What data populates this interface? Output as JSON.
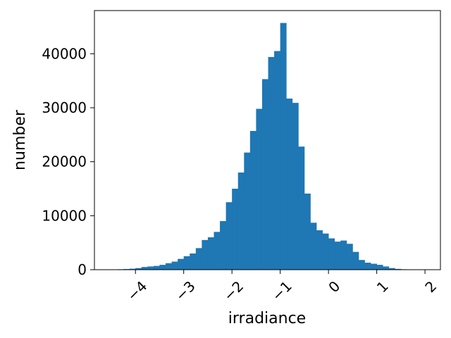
{
  "chart_data": {
    "type": "bar",
    "title": "",
    "xlabel": "irradiance",
    "ylabel": "number",
    "xlim": [
      -4.85,
      2.32
    ],
    "ylim": [
      0,
      48000
    ],
    "x_ticks": [
      {
        "value": -4,
        "label": "−4"
      },
      {
        "value": -3,
        "label": "−3"
      },
      {
        "value": -2,
        "label": "−2"
      },
      {
        "value": -1,
        "label": "−1"
      },
      {
        "value": 0,
        "label": "0"
      },
      {
        "value": 1,
        "label": "1"
      },
      {
        "value": 2,
        "label": "2"
      }
    ],
    "y_ticks": [
      {
        "value": 0,
        "label": "0"
      },
      {
        "value": 10000,
        "label": "10000"
      },
      {
        "value": 20000,
        "label": "20000"
      },
      {
        "value": 30000,
        "label": "30000"
      },
      {
        "value": 40000,
        "label": "40000"
      }
    ],
    "bin_edges": [
      -4.5,
      -4.375,
      -4.25,
      -4.125,
      -4.0,
      -3.875,
      -3.75,
      -3.625,
      -3.5,
      -3.375,
      -3.25,
      -3.125,
      -3.0,
      -2.875,
      -2.75,
      -2.625,
      -2.5,
      -2.375,
      -2.25,
      -2.125,
      -2.0,
      -1.875,
      -1.75,
      -1.625,
      -1.5,
      -1.375,
      -1.25,
      -1.125,
      -1.0,
      -0.875,
      -0.75,
      -0.625,
      -0.5,
      -0.375,
      -0.25,
      -0.125,
      0.0,
      0.125,
      0.25,
      0.375,
      0.5,
      0.625,
      0.75,
      0.875,
      1.0,
      1.125,
      1.25,
      1.375,
      1.5,
      1.625,
      1.75,
      1.875,
      2.0
    ],
    "values": [
      50,
      80,
      120,
      180,
      300,
      500,
      600,
      700,
      900,
      1200,
      1500,
      2000,
      2500,
      3000,
      4000,
      5500,
      6000,
      7000,
      9000,
      12500,
      15000,
      18000,
      21700,
      25700,
      29800,
      35300,
      39400,
      40500,
      45700,
      31700,
      30900,
      22800,
      14100,
      8700,
      7300,
      6700,
      5800,
      5200,
      5400,
      4800,
      3300,
      1800,
      1300,
      1100,
      900,
      600,
      300,
      150,
      80,
      50,
      20,
      10
    ],
    "color": "#1f77b4",
    "grid": false,
    "legend": "none"
  }
}
